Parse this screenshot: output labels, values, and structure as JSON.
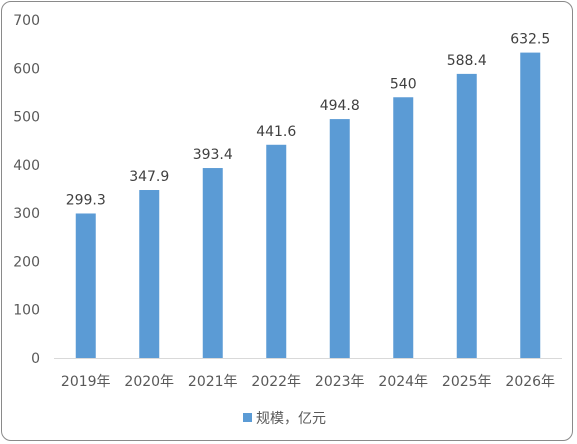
{
  "chart_data": {
    "type": "bar",
    "categories": [
      "2019年",
      "2020年",
      "2021年",
      "2022年",
      "2023年",
      "2024年",
      "2025年",
      "2026年"
    ],
    "series": [
      {
        "name": "规模，亿元",
        "values": [
          299.3,
          347.9,
          393.4,
          441.6,
          494.8,
          540,
          588.4,
          632.5
        ],
        "data_labels": [
          "299.3",
          "347.9",
          "393.4",
          "441.6",
          "494.8",
          "540",
          "588.4",
          "632.5"
        ],
        "color": "#5b9bd5"
      }
    ],
    "title": "",
    "xlabel": "",
    "ylabel": "",
    "ylim": [
      0,
      700
    ],
    "yticks": [
      0,
      100,
      200,
      300,
      400,
      500,
      600,
      700
    ],
    "grid": false,
    "legend_position": "bottom",
    "axis_color": "#d9d9d9",
    "text_color": "#595959"
  }
}
